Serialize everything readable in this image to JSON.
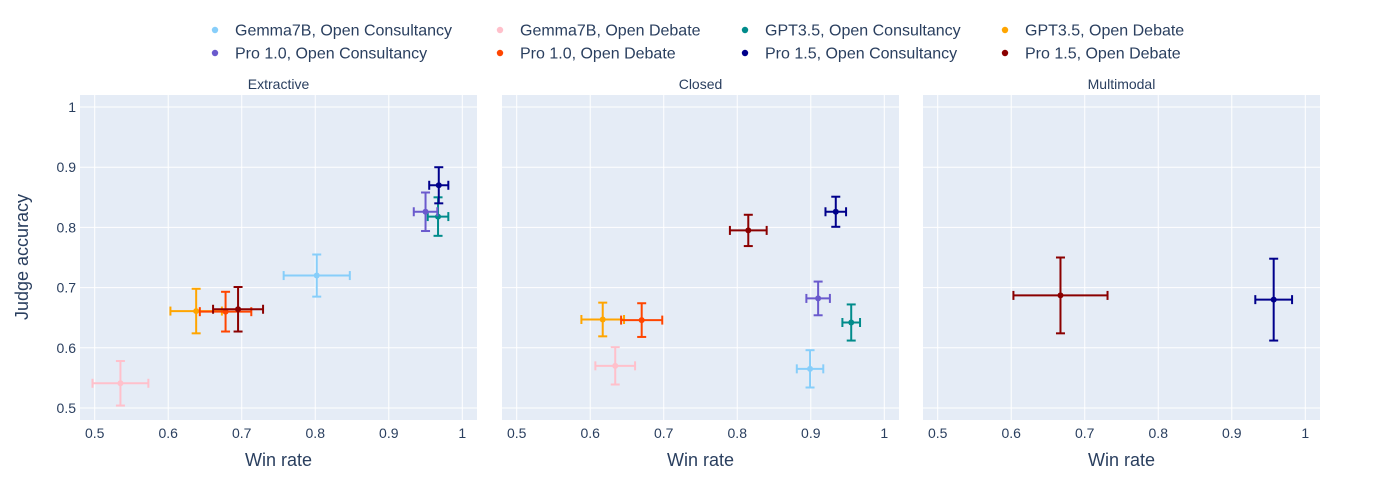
{
  "chart_data": {
    "type": "scatter",
    "ylabel": "Judge accuracy",
    "xlabel": "Win rate",
    "xlim": [
      0.48,
      1.02
    ],
    "ylim": [
      0.48,
      1.02
    ],
    "xticks": [
      "0.5",
      "0.6",
      "0.7",
      "0.8",
      "0.9",
      "1"
    ],
    "yticks": [
      "0.5",
      "0.6",
      "0.7",
      "0.8",
      "0.9",
      "1"
    ],
    "legend_position": "top",
    "legend": [
      {
        "name": "Gemma7B, Open Consultancy",
        "color": "#87cefa"
      },
      {
        "name": "Gemma7B, Open Debate",
        "color": "#ffc0cb"
      },
      {
        "name": "GPT3.5, Open Consultancy",
        "color": "#008b8b"
      },
      {
        "name": "GPT3.5, Open Debate",
        "color": "#ffa500"
      },
      {
        "name": "Pro 1.0, Open Consultancy",
        "color": "#6a5acd"
      },
      {
        "name": "Pro 1.0, Open Debate",
        "color": "#ff4500"
      },
      {
        "name": "Pro 1.5, Open Consultancy",
        "color": "#00008b"
      },
      {
        "name": "Pro 1.5, Open Debate",
        "color": "#8b0000"
      }
    ],
    "panels": [
      {
        "title": "Extractive",
        "points": [
          {
            "series": "Gemma7B, Open Consultancy",
            "color": "#87cefa",
            "x": 0.802,
            "xerr": 0.045,
            "y": 0.72,
            "yerr": 0.035
          },
          {
            "series": "Gemma7B, Open Debate",
            "color": "#ffc0cb",
            "x": 0.535,
            "xerr": 0.038,
            "y": 0.541,
            "yerr": 0.037
          },
          {
            "series": "GPT3.5, Open Consultancy",
            "color": "#008b8b",
            "x": 0.967,
            "xerr": 0.014,
            "y": 0.818,
            "yerr": 0.032
          },
          {
            "series": "GPT3.5, Open Debate",
            "color": "#ffa500",
            "x": 0.638,
            "xerr": 0.035,
            "y": 0.661,
            "yerr": 0.037
          },
          {
            "series": "Pro 1.0, Open Consultancy",
            "color": "#6a5acd",
            "x": 0.95,
            "xerr": 0.016,
            "y": 0.826,
            "yerr": 0.032
          },
          {
            "series": "Pro 1.0, Open Debate",
            "color": "#ff4500",
            "x": 0.678,
            "xerr": 0.035,
            "y": 0.66,
            "yerr": 0.033
          },
          {
            "series": "Pro 1.5, Open Consultancy",
            "color": "#00008b",
            "x": 0.968,
            "xerr": 0.013,
            "y": 0.87,
            "yerr": 0.03
          },
          {
            "series": "Pro 1.5, Open Debate",
            "color": "#8b0000",
            "x": 0.695,
            "xerr": 0.034,
            "y": 0.664,
            "yerr": 0.037
          }
        ]
      },
      {
        "title": "Closed",
        "points": [
          {
            "series": "Gemma7B, Open Consultancy",
            "color": "#87cefa",
            "x": 0.899,
            "xerr": 0.018,
            "y": 0.565,
            "yerr": 0.031
          },
          {
            "series": "Gemma7B, Open Debate",
            "color": "#ffc0cb",
            "x": 0.634,
            "xerr": 0.027,
            "y": 0.57,
            "yerr": 0.031
          },
          {
            "series": "GPT3.5, Open Consultancy",
            "color": "#008b8b",
            "x": 0.955,
            "xerr": 0.012,
            "y": 0.642,
            "yerr": 0.03
          },
          {
            "series": "GPT3.5, Open Debate",
            "color": "#ffa500",
            "x": 0.617,
            "xerr": 0.029,
            "y": 0.647,
            "yerr": 0.028
          },
          {
            "series": "Pro 1.0, Open Consultancy",
            "color": "#6a5acd",
            "x": 0.91,
            "xerr": 0.016,
            "y": 0.682,
            "yerr": 0.028
          },
          {
            "series": "Pro 1.0, Open Debate",
            "color": "#ff4500",
            "x": 0.67,
            "xerr": 0.028,
            "y": 0.646,
            "yerr": 0.028
          },
          {
            "series": "Pro 1.5, Open Consultancy",
            "color": "#00008b",
            "x": 0.934,
            "xerr": 0.014,
            "y": 0.826,
            "yerr": 0.025
          },
          {
            "series": "Pro 1.5, Open Debate",
            "color": "#8b0000",
            "x": 0.815,
            "xerr": 0.025,
            "y": 0.795,
            "yerr": 0.026
          }
        ]
      },
      {
        "title": "Multimodal",
        "points": [
          {
            "series": "Pro 1.5, Open Consultancy",
            "color": "#00008b",
            "x": 0.957,
            "xerr": 0.025,
            "y": 0.68,
            "yerr": 0.068
          },
          {
            "series": "Pro 1.5, Open Debate",
            "color": "#8b0000",
            "x": 0.667,
            "xerr": 0.064,
            "y": 0.687,
            "yerr": 0.063
          }
        ]
      }
    ]
  }
}
